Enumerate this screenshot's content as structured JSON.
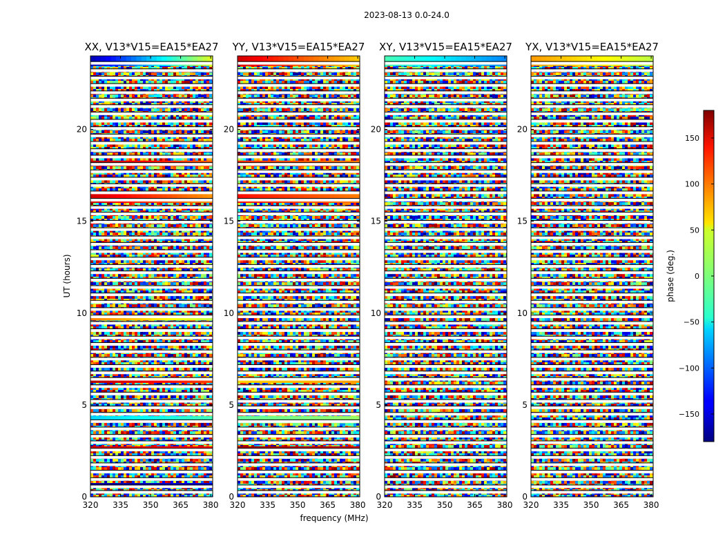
{
  "figure_title": "2023-08-13 0.0-24.0",
  "chart_data": {
    "type": "heatmap",
    "title": "2023-08-13 0.0-24.0",
    "xlabel": "frequency (MHz)",
    "ylabel": "UT (hours)",
    "xlim": [
      320,
      381
    ],
    "ylim": [
      0,
      24
    ],
    "xticks": [
      320,
      335,
      350,
      365,
      380
    ],
    "yticks": [
      0,
      5,
      10,
      15,
      20
    ],
    "panels": [
      {
        "title": "XX, V13*V15=EA15*EA27",
        "polarization": "XX"
      },
      {
        "title": "YY, V13*V15=EA15*EA27",
        "polarization": "YY"
      },
      {
        "title": "XY, V13*V15=EA15*EA27",
        "polarization": "XY"
      },
      {
        "title": "YX, V13*V15=EA15*EA27",
        "polarization": "YX"
      }
    ],
    "colorbar": {
      "label": "phase (deg.)",
      "range": [
        -180,
        180
      ],
      "ticks": [
        -150,
        -100,
        -50,
        0,
        50,
        100,
        150
      ],
      "colormap": "jet"
    },
    "flagged_gap_hours": [
      0.25,
      0.55,
      0.95,
      1.35,
      1.75,
      2.15,
      2.55,
      2.95,
      3.3,
      3.7,
      4.1,
      4.5,
      4.85,
      5.2,
      5.6,
      6.0,
      6.4,
      6.75,
      7.1,
      7.5,
      7.9,
      8.3,
      8.65,
      9.05,
      9.45,
      9.8,
      10.2,
      10.6,
      11.0,
      11.4,
      11.8,
      12.2,
      12.55,
      12.95,
      13.35,
      13.75,
      14.1,
      14.55,
      14.95,
      15.4,
      15.75,
      16.15,
      16.55,
      16.95,
      17.3,
      17.7,
      18.1,
      18.5,
      18.85,
      19.25,
      19.65,
      20.05,
      20.45,
      20.85,
      21.25,
      21.6,
      22.0,
      22.4,
      22.8,
      23.2,
      23.6
    ],
    "coherent_bands": [
      {
        "panel": "XX",
        "t0": 23.45,
        "t1": 24.0,
        "phase": [
          -160,
          40
        ]
      },
      {
        "panel": "XX",
        "t0": 16.0,
        "t1": 16.5,
        "phase": [
          150,
          80
        ]
      },
      {
        "panel": "XX",
        "t0": 18.0,
        "t1": 18.3,
        "phase": [
          160,
          100
        ]
      },
      {
        "panel": "XX",
        "t0": 9.6,
        "t1": 9.9,
        "phase": [
          90,
          20
        ]
      },
      {
        "panel": "XX",
        "t0": 6.2,
        "t1": 6.5,
        "phase": [
          160,
          110
        ]
      },
      {
        "panel": "XX",
        "t0": 4.1,
        "t1": 4.4,
        "phase": [
          -60,
          -20
        ]
      },
      {
        "panel": "XX",
        "t0": 2.55,
        "t1": 2.75,
        "phase": [
          150,
          130
        ]
      },
      {
        "panel": "XX",
        "t0": 0.55,
        "t1": 0.75,
        "phase": [
          -170,
          -150
        ]
      },
      {
        "panel": "YY",
        "t0": 23.45,
        "t1": 24.0,
        "phase": [
          150,
          60
        ]
      },
      {
        "panel": "YY",
        "t0": 16.0,
        "t1": 16.5,
        "phase": [
          130,
          90
        ]
      },
      {
        "panel": "YY",
        "t0": 18.0,
        "t1": 18.3,
        "phase": [
          120,
          90
        ]
      },
      {
        "panel": "YY",
        "t0": 6.2,
        "t1": 6.5,
        "phase": [
          60,
          80
        ]
      },
      {
        "panel": "YY",
        "t0": 4.0,
        "t1": 4.4,
        "phase": [
          -10,
          10
        ]
      },
      {
        "panel": "YY",
        "t0": 2.55,
        "t1": 2.75,
        "phase": [
          170,
          150
        ]
      },
      {
        "panel": "XY",
        "t0": 23.45,
        "t1": 24.0,
        "phase": [
          -20,
          -90
        ]
      },
      {
        "panel": "YX",
        "t0": 23.45,
        "t1": 24.0,
        "phase": [
          80,
          20
        ]
      }
    ]
  }
}
